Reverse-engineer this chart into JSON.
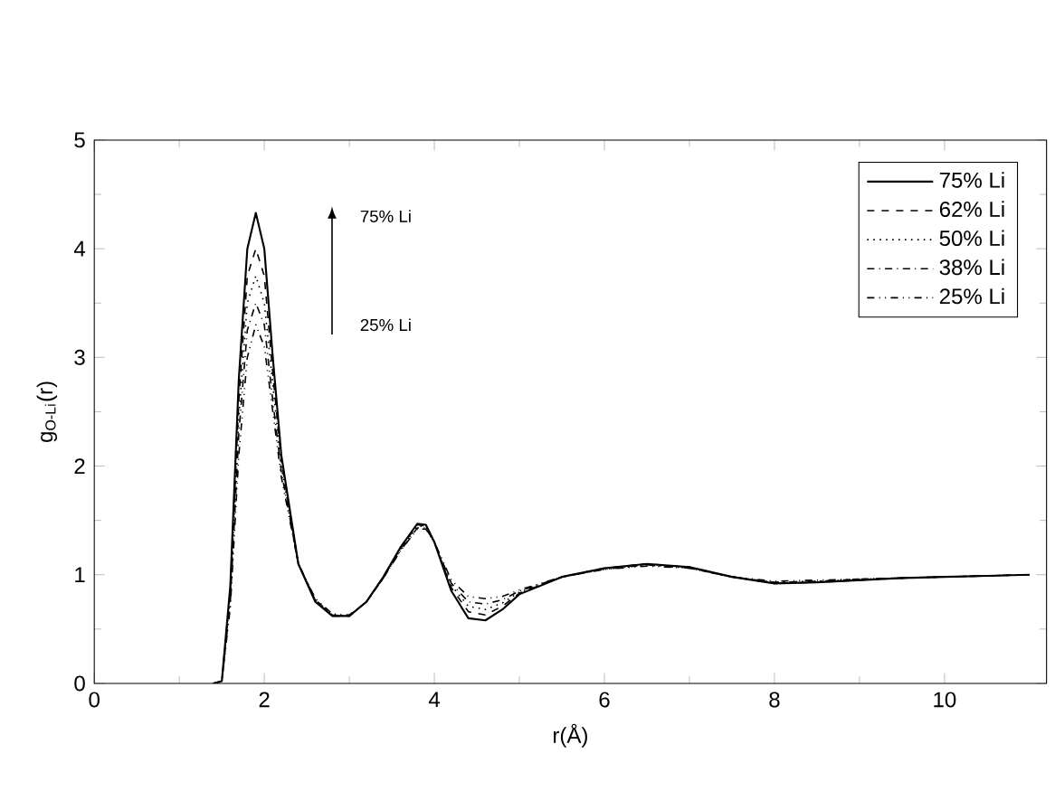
{
  "chart_data": {
    "type": "line",
    "xlabel": "r(Å)",
    "ylabel": "g$_{O-Li}$(r)",
    "x": [
      1.4,
      1.5,
      1.6,
      1.7,
      1.8,
      1.9,
      2.0,
      2.1,
      2.2,
      2.4,
      2.6,
      2.8,
      3.0,
      3.2,
      3.4,
      3.6,
      3.8,
      3.9,
      4.0,
      4.2,
      4.4,
      4.6,
      4.8,
      5.0,
      5.5,
      6.0,
      6.5,
      7.0,
      7.5,
      8.0,
      8.5,
      9.0,
      9.5,
      10.0,
      10.5,
      11.0
    ],
    "series": [
      {
        "name": "75% Li",
        "color": "#000000",
        "line_style": "solid",
        "values": [
          0,
          0.02,
          0.9,
          2.8,
          4.0,
          4.33,
          4.0,
          3.0,
          2.1,
          1.1,
          0.75,
          0.62,
          0.62,
          0.75,
          0.98,
          1.25,
          1.47,
          1.46,
          1.3,
          0.85,
          0.6,
          0.58,
          0.68,
          0.82,
          0.98,
          1.06,
          1.1,
          1.07,
          0.98,
          0.92,
          0.93,
          0.95,
          0.97,
          0.98,
          0.99,
          1.0
        ]
      },
      {
        "name": "62% Li",
        "color": "#000000",
        "line_style": "dashed",
        "values": [
          0,
          0.02,
          0.85,
          2.6,
          3.75,
          4.0,
          3.75,
          2.85,
          2.05,
          1.1,
          0.76,
          0.62,
          0.62,
          0.75,
          0.98,
          1.24,
          1.46,
          1.45,
          1.3,
          0.88,
          0.66,
          0.63,
          0.71,
          0.83,
          0.98,
          1.06,
          1.1,
          1.07,
          0.98,
          0.92,
          0.93,
          0.95,
          0.97,
          0.98,
          0.99,
          1.0
        ]
      },
      {
        "name": "50% Li",
        "color": "#000000",
        "line_style": "dotted",
        "values": [
          0,
          0.02,
          0.8,
          2.45,
          3.5,
          3.75,
          3.5,
          2.75,
          2.0,
          1.1,
          0.77,
          0.63,
          0.62,
          0.75,
          0.97,
          1.23,
          1.45,
          1.44,
          1.3,
          0.9,
          0.71,
          0.68,
          0.74,
          0.84,
          0.98,
          1.05,
          1.09,
          1.07,
          0.98,
          0.93,
          0.94,
          0.95,
          0.97,
          0.98,
          0.99,
          1.0
        ]
      },
      {
        "name": "38% Li",
        "color": "#000000",
        "line_style": "dashdot",
        "values": [
          0,
          0.02,
          0.75,
          2.3,
          3.25,
          3.5,
          3.3,
          2.6,
          1.95,
          1.1,
          0.77,
          0.63,
          0.62,
          0.75,
          0.97,
          1.22,
          1.43,
          1.43,
          1.3,
          0.92,
          0.75,
          0.73,
          0.77,
          0.85,
          0.98,
          1.05,
          1.09,
          1.06,
          0.98,
          0.93,
          0.94,
          0.96,
          0.97,
          0.98,
          0.99,
          1.0
        ]
      },
      {
        "name": "25% Li",
        "color": "#000000",
        "line_style": "dashdotdotted",
        "values": [
          0,
          0.02,
          0.7,
          2.1,
          3.0,
          3.3,
          3.1,
          2.5,
          1.9,
          1.1,
          0.78,
          0.64,
          0.63,
          0.75,
          0.97,
          1.22,
          1.42,
          1.42,
          1.3,
          0.95,
          0.8,
          0.78,
          0.8,
          0.86,
          0.98,
          1.05,
          1.08,
          1.06,
          0.98,
          0.94,
          0.95,
          0.96,
          0.97,
          0.98,
          0.99,
          1.0
        ]
      }
    ],
    "annotations": [
      "75% Li",
      "25% Li"
    ],
    "xlim": [
      0,
      11.2
    ],
    "ylim": [
      0,
      5
    ],
    "xticks": [
      0,
      2,
      4,
      6,
      8,
      10
    ],
    "yticks": [
      0,
      1,
      2,
      3,
      4,
      5
    ],
    "legend": "top right",
    "grid": false,
    "marker": "none"
  }
}
